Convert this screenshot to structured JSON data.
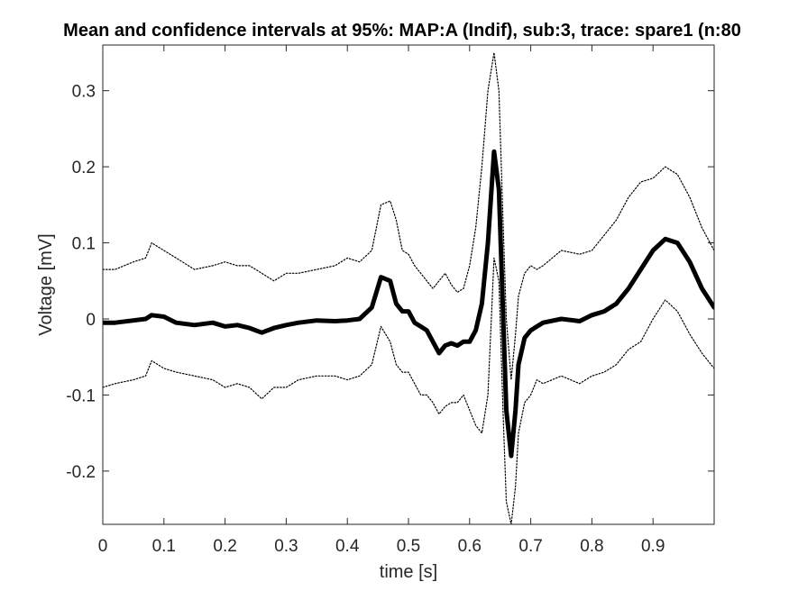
{
  "chart_data": {
    "type": "line",
    "title": "Mean and confidence intervals at 95%: MAP:A (Indif), sub:3, trace: spare1 (n:80",
    "xlabel": "time [s]",
    "ylabel": "Voltage [mV]",
    "xlim": [
      0,
      1.0
    ],
    "ylim": [
      -0.27,
      0.36
    ],
    "x_ticks": [
      0,
      0.1,
      0.2,
      0.3,
      0.4,
      0.5,
      0.6,
      0.7,
      0.8,
      0.9
    ],
    "x_tick_labels": [
      "0",
      "0.1",
      "0.2",
      "0.3",
      "0.4",
      "0.5",
      "0.6",
      "0.7",
      "0.8",
      "0.9"
    ],
    "y_ticks": [
      -0.2,
      -0.1,
      0,
      0.1,
      0.2,
      0.3
    ],
    "y_tick_labels": [
      "-0.2",
      "-0.1",
      "0",
      "0.1",
      "0.2",
      "0.3"
    ],
    "grid": false,
    "legend": "none",
    "colors": {
      "mean": "#000000",
      "ci": "#000000",
      "axes": "#262626"
    },
    "x": [
      0,
      0.02,
      0.05,
      0.07,
      0.08,
      0.1,
      0.12,
      0.15,
      0.18,
      0.2,
      0.22,
      0.24,
      0.26,
      0.28,
      0.3,
      0.32,
      0.35,
      0.38,
      0.4,
      0.42,
      0.44,
      0.455,
      0.47,
      0.48,
      0.49,
      0.5,
      0.51,
      0.52,
      0.53,
      0.54,
      0.55,
      0.56,
      0.57,
      0.58,
      0.59,
      0.6,
      0.61,
      0.62,
      0.63,
      0.64,
      0.648,
      0.655,
      0.66,
      0.668,
      0.675,
      0.68,
      0.69,
      0.7,
      0.71,
      0.72,
      0.75,
      0.78,
      0.8,
      0.82,
      0.84,
      0.86,
      0.88,
      0.9,
      0.92,
      0.94,
      0.96,
      0.98,
      1.0
    ],
    "series": [
      {
        "values": [
          -0.005,
          -0.005,
          -0.002,
          0.0,
          0.005,
          0.003,
          -0.005,
          -0.008,
          -0.005,
          -0.01,
          -0.008,
          -0.012,
          -0.018,
          -0.012,
          -0.008,
          -0.005,
          -0.002,
          -0.003,
          -0.002,
          0.0,
          0.015,
          0.055,
          0.05,
          0.02,
          0.01,
          0.01,
          -0.005,
          -0.01,
          -0.015,
          -0.03,
          -0.045,
          -0.035,
          -0.032,
          -0.035,
          -0.03,
          -0.03,
          -0.015,
          0.02,
          0.1,
          0.22,
          0.17,
          0.0,
          -0.12,
          -0.18,
          -0.12,
          -0.06,
          -0.025,
          -0.015,
          -0.01,
          -0.005,
          0.0,
          -0.003,
          0.005,
          0.01,
          0.02,
          0.04,
          0.065,
          0.09,
          0.105,
          0.1,
          0.075,
          0.04,
          0.015
        ],
        "style": "solid"
      },
      {
        "values": [
          0.065,
          0.065,
          0.075,
          0.08,
          0.1,
          0.09,
          0.08,
          0.065,
          0.07,
          0.075,
          0.07,
          0.07,
          0.06,
          0.05,
          0.06,
          0.06,
          0.065,
          0.07,
          0.08,
          0.075,
          0.09,
          0.15,
          0.155,
          0.13,
          0.09,
          0.085,
          0.07,
          0.06,
          0.05,
          0.04,
          0.05,
          0.06,
          0.045,
          0.035,
          0.04,
          0.07,
          0.12,
          0.2,
          0.3,
          0.35,
          0.3,
          0.12,
          0.0,
          -0.08,
          -0.02,
          0.03,
          0.06,
          0.07,
          0.065,
          0.07,
          0.09,
          0.085,
          0.09,
          0.11,
          0.13,
          0.16,
          0.18,
          0.185,
          0.2,
          0.19,
          0.16,
          0.12,
          0.09
        ],
        "style": "dotted"
      },
      {
        "values": [
          -0.09,
          -0.085,
          -0.08,
          -0.075,
          -0.055,
          -0.065,
          -0.07,
          -0.075,
          -0.08,
          -0.09,
          -0.085,
          -0.09,
          -0.105,
          -0.09,
          -0.09,
          -0.08,
          -0.075,
          -0.075,
          -0.08,
          -0.075,
          -0.06,
          -0.01,
          -0.03,
          -0.06,
          -0.07,
          -0.07,
          -0.085,
          -0.1,
          -0.1,
          -0.11,
          -0.125,
          -0.115,
          -0.11,
          -0.11,
          -0.1,
          -0.12,
          -0.14,
          -0.15,
          -0.1,
          0.08,
          0.05,
          -0.13,
          -0.24,
          -0.27,
          -0.22,
          -0.15,
          -0.11,
          -0.1,
          -0.08,
          -0.085,
          -0.075,
          -0.085,
          -0.075,
          -0.07,
          -0.06,
          -0.04,
          -0.03,
          0.0,
          0.025,
          0.01,
          -0.02,
          -0.045,
          -0.065
        ],
        "style": "dotted"
      }
    ]
  }
}
